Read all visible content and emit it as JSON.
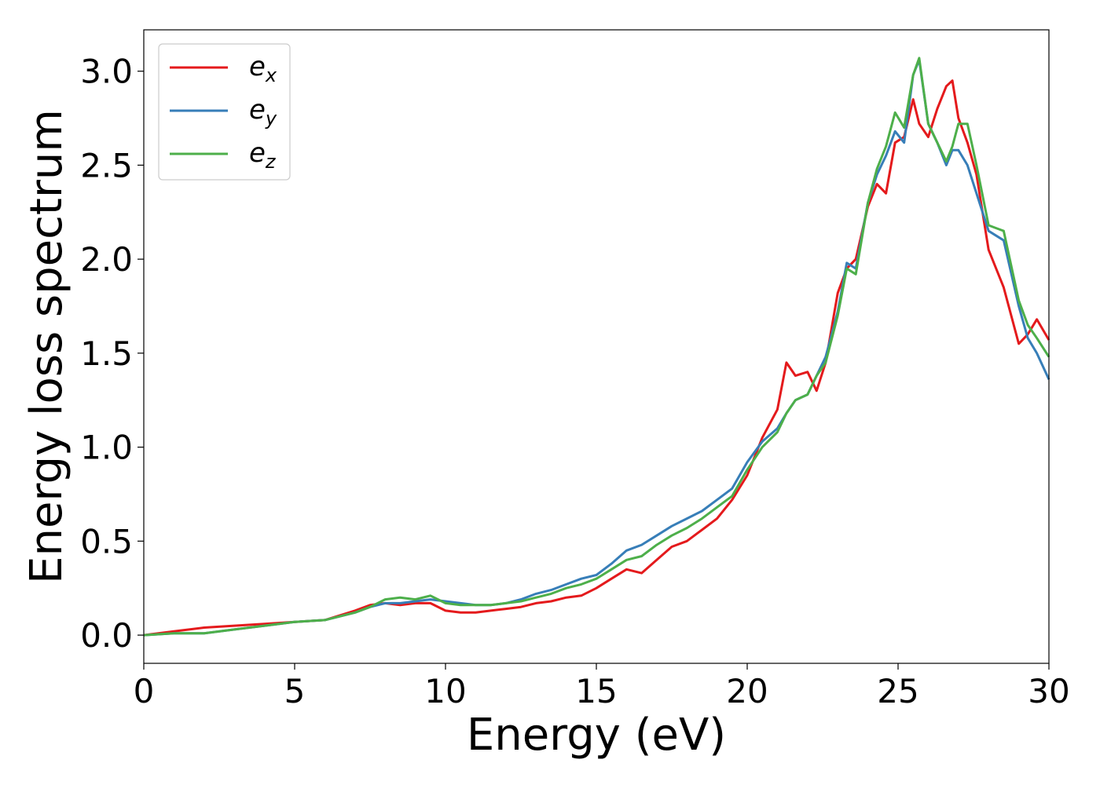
{
  "chart_data": {
    "type": "line",
    "title": "",
    "xlabel": "Energy (eV)",
    "ylabel": "Energy loss spectrum",
    "xlim": [
      0,
      30
    ],
    "ylim": [
      -0.15,
      3.22
    ],
    "xticks": [
      0,
      5,
      10,
      15,
      20,
      25,
      30
    ],
    "xtick_labels": [
      "0",
      "5",
      "10",
      "15",
      "20",
      "25",
      "30"
    ],
    "yticks": [
      0.0,
      0.5,
      1.0,
      1.5,
      2.0,
      2.5,
      3.0
    ],
    "ytick_labels": [
      "0.0",
      "0.5",
      "1.0",
      "1.5",
      "2.0",
      "2.5",
      "3.0"
    ],
    "grid": false,
    "legend_position": "top-left",
    "x": [
      0,
      1,
      2,
      3,
      4,
      5,
      6,
      7,
      7.5,
      8,
      8.5,
      9,
      9.5,
      10,
      10.5,
      11,
      11.5,
      12,
      12.5,
      13,
      13.5,
      14,
      14.5,
      15,
      15.5,
      16,
      16.5,
      17,
      17.5,
      18,
      18.5,
      19,
      19.5,
      20,
      20.5,
      21,
      21.3,
      21.6,
      22,
      22.3,
      22.6,
      23,
      23.3,
      23.6,
      24,
      24.3,
      24.6,
      24.9,
      25.2,
      25.5,
      25.7,
      26,
      26.3,
      26.6,
      26.8,
      27,
      27.3,
      27.6,
      28,
      28.5,
      29,
      29.3,
      29.6,
      30
    ],
    "series": [
      {
        "name": "e_x",
        "label_base": "e",
        "label_sub": "x",
        "color": "#e41a1c",
        "values": [
          0.0,
          0.02,
          0.04,
          0.05,
          0.06,
          0.07,
          0.08,
          0.13,
          0.16,
          0.17,
          0.16,
          0.17,
          0.17,
          0.13,
          0.12,
          0.12,
          0.13,
          0.14,
          0.15,
          0.17,
          0.18,
          0.2,
          0.21,
          0.25,
          0.3,
          0.35,
          0.33,
          0.4,
          0.47,
          0.5,
          0.56,
          0.62,
          0.72,
          0.85,
          1.05,
          1.2,
          1.45,
          1.38,
          1.4,
          1.3,
          1.45,
          1.82,
          1.95,
          2.0,
          2.28,
          2.4,
          2.35,
          2.62,
          2.65,
          2.85,
          2.72,
          2.65,
          2.8,
          2.92,
          2.95,
          2.75,
          2.62,
          2.45,
          2.05,
          1.85,
          1.55,
          1.6,
          1.68,
          1.57
        ]
      },
      {
        "name": "e_y",
        "label_base": "e",
        "label_sub": "y",
        "color": "#377eb8",
        "values": [
          0.0,
          0.01,
          0.01,
          0.03,
          0.05,
          0.07,
          0.08,
          0.12,
          0.15,
          0.17,
          0.17,
          0.18,
          0.19,
          0.18,
          0.17,
          0.16,
          0.16,
          0.17,
          0.19,
          0.22,
          0.24,
          0.27,
          0.3,
          0.32,
          0.38,
          0.45,
          0.48,
          0.53,
          0.58,
          0.62,
          0.66,
          0.72,
          0.78,
          0.92,
          1.03,
          1.1,
          1.18,
          1.25,
          1.28,
          1.38,
          1.48,
          1.72,
          1.98,
          1.95,
          2.3,
          2.45,
          2.55,
          2.68,
          2.62,
          2.98,
          3.06,
          2.72,
          2.62,
          2.5,
          2.58,
          2.58,
          2.5,
          2.35,
          2.15,
          2.1,
          1.75,
          1.58,
          1.5,
          1.36
        ]
      },
      {
        "name": "e_z",
        "label_base": "e",
        "label_sub": "z",
        "color": "#4daf4a",
        "values": [
          0.0,
          0.01,
          0.01,
          0.03,
          0.05,
          0.07,
          0.08,
          0.12,
          0.15,
          0.19,
          0.2,
          0.19,
          0.21,
          0.17,
          0.16,
          0.16,
          0.16,
          0.17,
          0.18,
          0.2,
          0.22,
          0.25,
          0.27,
          0.3,
          0.35,
          0.4,
          0.42,
          0.48,
          0.53,
          0.57,
          0.62,
          0.68,
          0.74,
          0.88,
          1.0,
          1.08,
          1.18,
          1.25,
          1.28,
          1.38,
          1.45,
          1.7,
          1.95,
          1.92,
          2.3,
          2.48,
          2.6,
          2.78,
          2.7,
          2.98,
          3.07,
          2.72,
          2.62,
          2.52,
          2.6,
          2.72,
          2.72,
          2.5,
          2.18,
          2.15,
          1.78,
          1.65,
          1.58,
          1.48
        ]
      }
    ]
  }
}
